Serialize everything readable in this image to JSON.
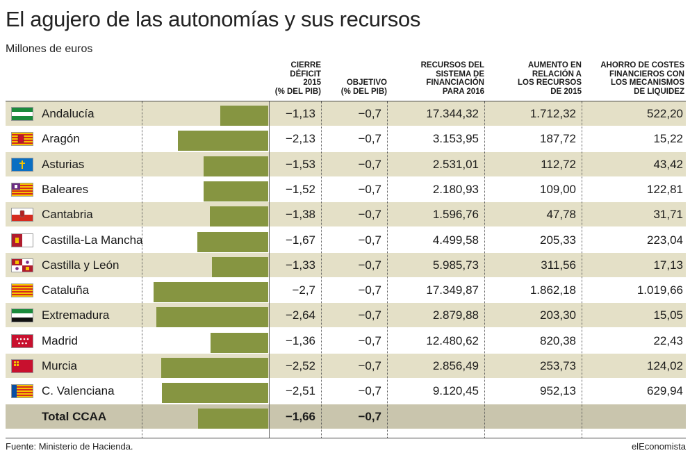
{
  "title": "El agujero de las autonomías y sus recursos",
  "subtitle": "Millones de euros",
  "headers": {
    "deficit": [
      "CIERRE",
      "DÉFICIT",
      "2015",
      "(% DEL PIB)"
    ],
    "objetivo": [
      "OBJETIVO",
      "(% DEL PIB)"
    ],
    "recursos": [
      "RECURSOS DEL",
      "SISTEMA DE",
      "FINANCIACIÓN",
      "PARA 2016"
    ],
    "aumento": [
      "AUMENTO EN",
      "RELACIÓN A",
      "LOS RECURSOS",
      "DE 2015"
    ],
    "ahorro": [
      "AHORRO DE COSTES",
      "FINANCIEROS CON",
      "LOS MECANISMOS",
      "DE LIQUIDEZ"
    ]
  },
  "source": "Fuente: Ministerio de Hacienda.",
  "brand": "elEconomista",
  "colors": {
    "bar": "#869541",
    "shade": "#e4e0c7",
    "total": "#c9c5ad"
  },
  "chart_data": {
    "type": "table",
    "bar_column": "deficit",
    "bar_range": [
      -2.7,
      0
    ],
    "rows": [
      {
        "name": "Andalucía",
        "flag": "andalucia-flag",
        "deficit": -1.13,
        "deficit_label": "−1,13",
        "objetivo": "−0,7",
        "recursos": "17.344,32",
        "aumento": "1.712,32",
        "ahorro": "522,20"
      },
      {
        "name": "Aragón",
        "flag": "aragon-flag",
        "deficit": -2.13,
        "deficit_label": "−2,13",
        "objetivo": "−0,7",
        "recursos": "3.153,95",
        "aumento": "187,72",
        "ahorro": "15,22"
      },
      {
        "name": "Asturias",
        "flag": "asturias-flag",
        "deficit": -1.53,
        "deficit_label": "−1,53",
        "objetivo": "−0,7",
        "recursos": "2.531,01",
        "aumento": "112,72",
        "ahorro": "43,42"
      },
      {
        "name": "Baleares",
        "flag": "baleares-flag",
        "deficit": -1.52,
        "deficit_label": "−1,52",
        "objetivo": "−0,7",
        "recursos": "2.180,93",
        "aumento": "109,00",
        "ahorro": "122,81"
      },
      {
        "name": "Cantabria",
        "flag": "cantabria-flag",
        "deficit": -1.38,
        "deficit_label": "−1,38",
        "objetivo": "−0,7",
        "recursos": "1.596,76",
        "aumento": "47,78",
        "ahorro": "31,71"
      },
      {
        "name": "Castilla-La Mancha",
        "flag": "castilla-la-mancha-flag",
        "deficit": -1.67,
        "deficit_label": "−1,67",
        "objetivo": "−0,7",
        "recursos": "4.499,58",
        "aumento": "205,33",
        "ahorro": "223,04"
      },
      {
        "name": "Castilla y León",
        "flag": "castilla-y-leon-flag",
        "deficit": -1.33,
        "deficit_label": "−1,33",
        "objetivo": "−0,7",
        "recursos": "5.985,73",
        "aumento": "311,56",
        "ahorro": "17,13"
      },
      {
        "name": "Cataluña",
        "flag": "cataluna-flag",
        "deficit": -2.7,
        "deficit_label": "−2,7",
        "objetivo": "−0,7",
        "recursos": "17.349,87",
        "aumento": "1.862,18",
        "ahorro": "1.019,66"
      },
      {
        "name": "Extremadura",
        "flag": "extremadura-flag",
        "deficit": -2.64,
        "deficit_label": "−2,64",
        "objetivo": "−0,7",
        "recursos": "2.879,88",
        "aumento": "203,30",
        "ahorro": "15,05"
      },
      {
        "name": "Madrid",
        "flag": "madrid-flag",
        "deficit": -1.36,
        "deficit_label": "−1,36",
        "objetivo": "−0,7",
        "recursos": "12.480,62",
        "aumento": "820,38",
        "ahorro": "22,43"
      },
      {
        "name": "Murcia",
        "flag": "murcia-flag",
        "deficit": -2.52,
        "deficit_label": "−2,52",
        "objetivo": "−0,7",
        "recursos": "2.856,49",
        "aumento": "253,73",
        "ahorro": "124,02"
      },
      {
        "name": "C. Valenciana",
        "flag": "valencia-flag",
        "deficit": -2.51,
        "deficit_label": "−2,51",
        "objetivo": "−0,7",
        "recursos": "9.120,45",
        "aumento": "952,13",
        "ahorro": "629,94"
      }
    ],
    "total": {
      "name": "Total CCAA",
      "deficit": -1.66,
      "deficit_label": "−1,66",
      "objetivo": "−0,7",
      "recursos": "",
      "aumento": "",
      "ahorro": ""
    }
  }
}
